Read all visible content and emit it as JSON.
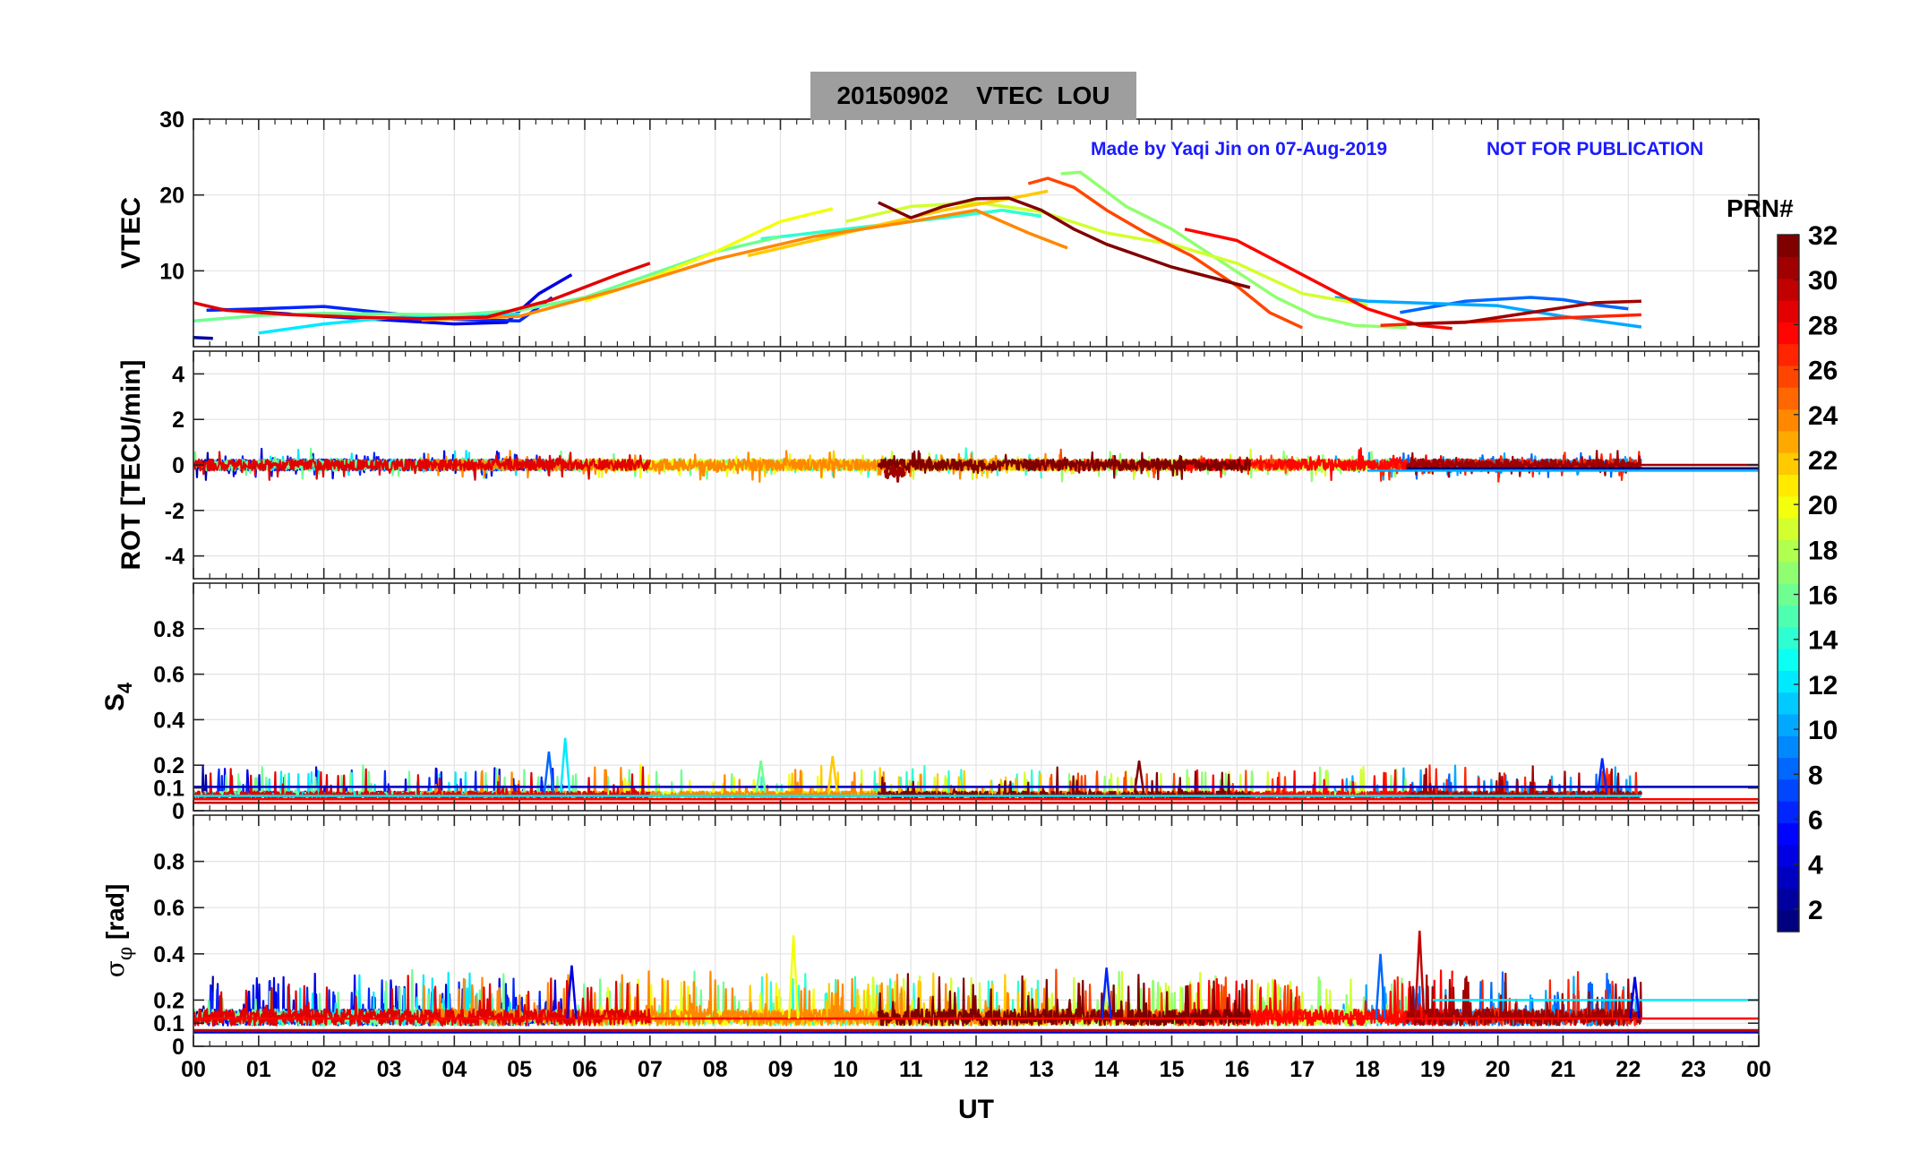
{
  "chart_data": {
    "type": "line",
    "title": "20150902    VTEC  LOU",
    "annotation_left": "Made by Yaqi Jin on 07-Aug-2019",
    "annotation_right": "NOT FOR PUBLICATION",
    "xlabel": "UT",
    "xlim": [
      0,
      24
    ],
    "x_tick_labels": [
      "00",
      "01",
      "02",
      "03",
      "04",
      "05",
      "06",
      "07",
      "08",
      "09",
      "10",
      "11",
      "12",
      "13",
      "14",
      "15",
      "16",
      "17",
      "18",
      "19",
      "20",
      "21",
      "22",
      "23",
      "00"
    ],
    "colorbar": {
      "label": "PRN#",
      "range": [
        1,
        32
      ],
      "tick_labels": [
        "2",
        "4",
        "6",
        "8",
        "10",
        "12",
        "14",
        "16",
        "18",
        "20",
        "22",
        "24",
        "26",
        "28",
        "30",
        "32"
      ],
      "colormap": "jet"
    },
    "panels": [
      {
        "name": "vtec",
        "ylabel": "VTEC",
        "ylim": [
          0,
          30
        ],
        "y_tick_labels": [
          "30",
          "20",
          "10"
        ],
        "series": [
          {
            "prn": 2,
            "x": [
              0.0,
              0.3
            ],
            "y": [
              1.2,
              1.1
            ]
          },
          {
            "prn": 4,
            "x": [
              0.3,
              1.0,
              2.0,
              3.0,
              4.0,
              4.8,
              5.3,
              5.8
            ],
            "y": [
              5.0,
              4.6,
              4.0,
              3.5,
              3.0,
              3.2,
              7.0,
              9.5
            ]
          },
          {
            "prn": 6,
            "x": [
              0.2,
              1.0,
              2.0,
              3.0,
              4.0,
              5.0,
              5.5
            ],
            "y": [
              4.8,
              5.0,
              5.3,
              4.4,
              3.6,
              3.4,
              6.5
            ]
          },
          {
            "prn": 8,
            "x": [
              18.5,
              19.5,
              20.5,
              21.0,
              21.5,
              22.0
            ],
            "y": [
              4.5,
              6.0,
              6.5,
              6.2,
              5.5,
              5.0
            ]
          },
          {
            "prn": 10,
            "x": [
              17.5,
              18.0,
              19.0,
              20.0,
              21.0,
              22.2
            ],
            "y": [
              6.5,
              6.0,
              5.7,
              5.4,
              4.0,
              2.6
            ]
          },
          {
            "prn": 12,
            "x": [
              1.0,
              2.0,
              3.0,
              4.0,
              5.0
            ],
            "y": [
              1.8,
              3.0,
              3.8,
              4.0,
              4.3
            ]
          },
          {
            "prn": 14,
            "x": [
              8.7,
              9.5,
              10.5,
              11.5,
              12.4,
              13.0
            ],
            "y": [
              14.2,
              15.0,
              16.0,
              17.0,
              18.0,
              17.2
            ]
          },
          {
            "prn": 16,
            "x": [
              0.0,
              1.0,
              2.0,
              3.0,
              4.0,
              5.0,
              6.0,
              7.0,
              8.0,
              9.0
            ],
            "y": [
              3.4,
              4.1,
              4.4,
              4.3,
              4.2,
              4.8,
              6.5,
              9.5,
              12.5,
              14.5
            ]
          },
          {
            "prn": 17,
            "x": [
              13.3,
              13.6,
              14.3,
              15.0,
              15.8,
              16.6,
              17.2,
              17.8,
              18.6
            ],
            "y": [
              22.8,
              23.0,
              18.5,
              15.5,
              11.0,
              6.5,
              4.0,
              2.8,
              2.5
            ]
          },
          {
            "prn": 19,
            "x": [
              10.0,
              11.0,
              12.0,
              13.0,
              14.0,
              15.0,
              16.0,
              17.0,
              18.0
            ],
            "y": [
              16.5,
              18.5,
              19.0,
              17.8,
              15.0,
              13.5,
              11.0,
              7.0,
              5.5
            ]
          },
          {
            "prn": 20,
            "x": [
              6.0,
              7.0,
              8.0,
              9.0,
              9.8
            ],
            "y": [
              6.0,
              9.0,
              12.5,
              16.5,
              18.2
            ]
          },
          {
            "prn": 22,
            "x": [
              8.5,
              9.5,
              10.5,
              11.5,
              12.5,
              13.1
            ],
            "y": [
              12.0,
              14.0,
              16.0,
              18.0,
              19.5,
              20.5
            ]
          },
          {
            "prn": 24,
            "x": [
              3.5,
              5.0,
              6.5,
              8.0,
              9.5,
              11.0,
              12.0,
              12.8,
              13.4
            ],
            "y": [
              3.5,
              4.0,
              7.5,
              11.5,
              14.5,
              16.5,
              18.0,
              15.0,
              13.0
            ]
          },
          {
            "prn": 26,
            "x": [
              12.8,
              13.1,
              13.5,
              14.0,
              14.6,
              15.3,
              16.0,
              16.5,
              17.0
            ],
            "y": [
              21.5,
              22.2,
              21.0,
              18.0,
              15.0,
              12.0,
              8.0,
              4.5,
              2.5
            ]
          },
          {
            "prn": 27,
            "x": [
              18.2,
              19.0,
              20.0,
              21.0,
              22.2
            ],
            "y": [
              2.8,
              3.1,
              3.4,
              3.8,
              4.2
            ]
          },
          {
            "prn": 28,
            "x": [
              15.2,
              16.0,
              17.0,
              18.0,
              18.8,
              19.3
            ],
            "y": [
              15.5,
              14.0,
              9.5,
              5.0,
              2.8,
              2.4
            ]
          },
          {
            "prn": 29,
            "x": [
              0.0,
              0.5,
              1.5,
              2.5,
              3.5,
              4.5,
              5.5,
              6.5,
              7.0
            ],
            "y": [
              5.8,
              4.8,
              4.2,
              3.9,
              3.7,
              3.9,
              6.2,
              9.5,
              11.0
            ]
          },
          {
            "prn": 31,
            "x": [
              18.6,
              19.5,
              20.5,
              21.5,
              22.2
            ],
            "y": [
              3.0,
              3.2,
              4.5,
              5.8,
              6.0
            ]
          },
          {
            "prn": 32,
            "x": [
              10.5,
              11.0,
              11.5,
              12.0,
              12.5,
              13.0,
              13.5,
              14.0,
              15.0,
              16.2
            ],
            "y": [
              19.0,
              17.0,
              18.5,
              19.5,
              19.6,
              18.0,
              15.5,
              13.5,
              10.5,
              7.8
            ]
          }
        ]
      },
      {
        "name": "rot",
        "ylabel": "ROT [TECU/min]",
        "ylim": [
          -5,
          5
        ],
        "y_tick_labels": [
          "4",
          "2",
          "0",
          "-2",
          "-4"
        ]
      },
      {
        "name": "s4",
        "ylabel": "S4",
        "ylim": [
          0,
          1
        ],
        "y_tick_labels": [
          "0.8",
          "0.6",
          "0.4",
          "0.2",
          "0.1",
          "0"
        ]
      },
      {
        "name": "sigma_phi",
        "ylabel": "σ_φ [rad]",
        "ylim": [
          0,
          1
        ],
        "y_tick_labels": [
          "0.8",
          "0.6",
          "0.4",
          "0.2",
          "0.1",
          "0"
        ]
      }
    ]
  }
}
